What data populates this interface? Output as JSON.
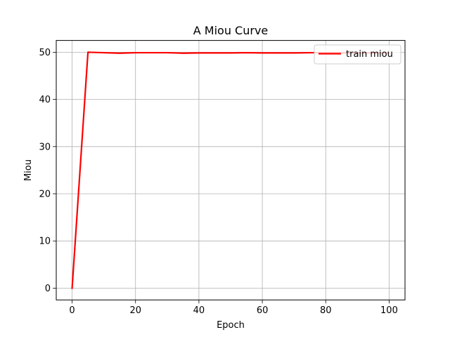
{
  "chart_data": {
    "type": "line",
    "title": "A Miou Curve",
    "xlabel": "Epoch",
    "ylabel": "Miou",
    "xlim": [
      -5,
      105
    ],
    "ylim": [
      -2.5,
      52.5
    ],
    "xticks": [
      0,
      20,
      40,
      60,
      80,
      100
    ],
    "yticks": [
      0,
      10,
      20,
      30,
      40,
      50
    ],
    "grid": true,
    "legend_position": "top-right",
    "series": [
      {
        "name": "train miou",
        "color": "#ff0000",
        "x": [
          0,
          5,
          10,
          15,
          20,
          25,
          30,
          35,
          40,
          45,
          50,
          55,
          60,
          65,
          70,
          75,
          80,
          85,
          90,
          95,
          100
        ],
        "y": [
          0,
          50.0,
          49.9,
          49.8,
          49.9,
          49.9,
          49.9,
          49.8,
          49.85,
          49.85,
          49.85,
          49.9,
          49.85,
          49.85,
          49.85,
          49.9,
          49.9,
          49.85,
          49.85,
          49.85,
          49.85
        ]
      }
    ]
  }
}
